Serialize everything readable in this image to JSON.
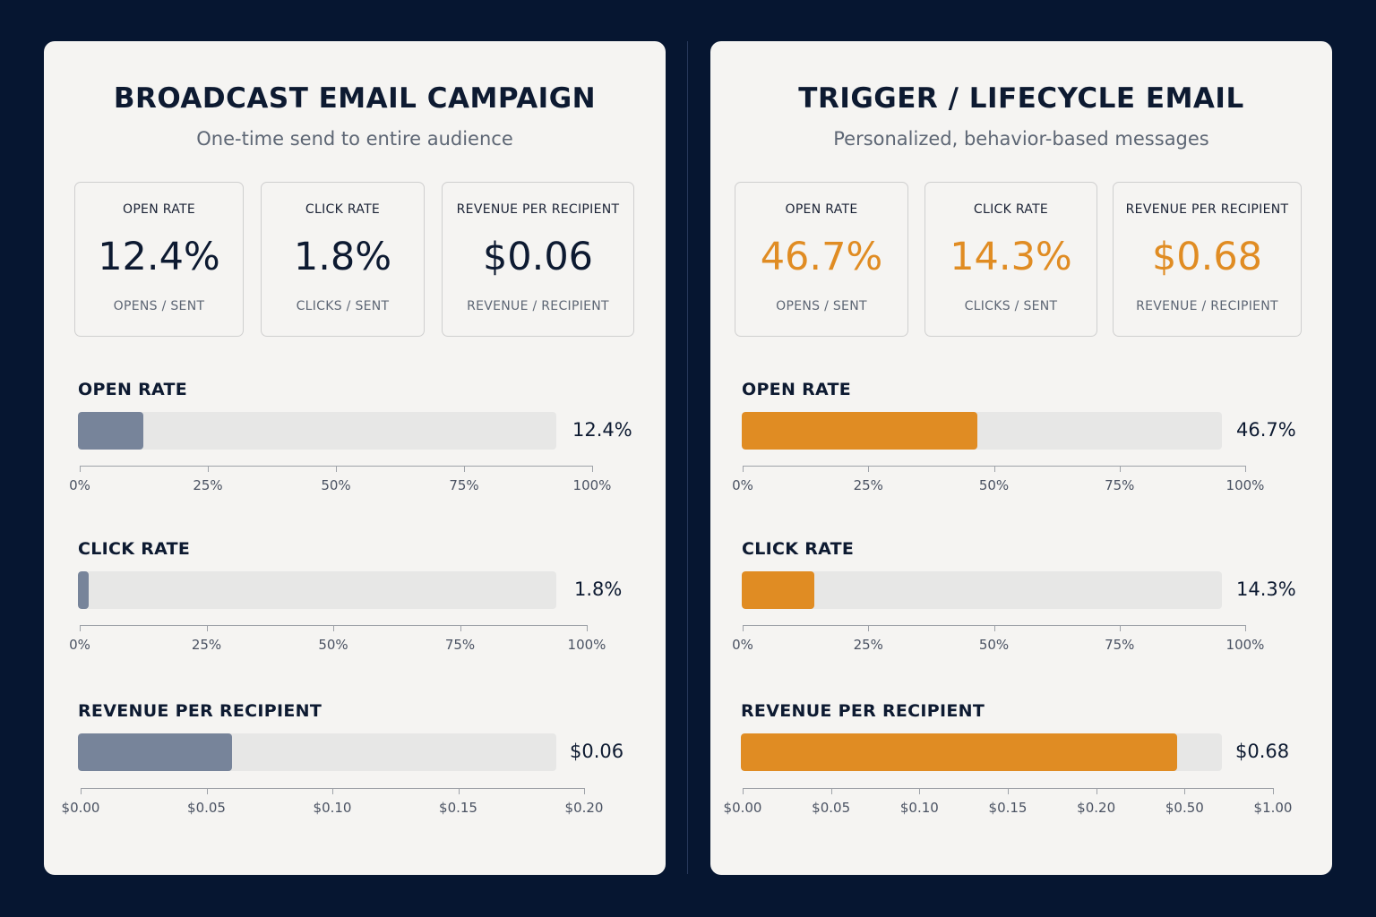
{
  "colors": {
    "background": "#061631",
    "panel": "#f5f4f2",
    "neutral_fill": "#77849a",
    "accent": "#e08c23",
    "dark_text": "#0d1a31"
  },
  "panels": [
    {
      "title": "BROADCAST EMAIL CAMPAIGN",
      "subtitle": "One-time send to entire audience",
      "cards": [
        {
          "label": "OPEN RATE",
          "value": "12.4%",
          "sub": "OPENS / SENT"
        },
        {
          "label": "CLICK RATE",
          "value": "1.8%",
          "sub": "CLICKS / SENT"
        },
        {
          "label": "REVENUE PER RECIPIENT",
          "value": "$0.06",
          "sub": "REVENUE / RECIPIENT"
        }
      ]
    },
    {
      "title": "TRIGGER / LIFECYCLE EMAIL",
      "subtitle": "Personalized, behavior-based messages",
      "cards": [
        {
          "label": "OPEN RATE",
          "value": "46.7%",
          "sub": "OPENS / SENT"
        },
        {
          "label": "CLICK RATE",
          "value": "14.3%",
          "sub": "CLICKS / SENT"
        },
        {
          "label": "REVENUE PER RECIPIENT",
          "value": "$0.68",
          "sub": "REVENUE / RECIPIENT"
        }
      ]
    }
  ],
  "chart_data": [
    {
      "type": "bar",
      "orientation": "horizontal",
      "title": "OPEN RATE",
      "value": 12.4,
      "value_label": "12.4%",
      "unit": "%",
      "xlim": [
        0,
        100
      ],
      "ticks": [
        0,
        25,
        50,
        75,
        100
      ],
      "tick_labels": [
        "0%",
        "25%",
        "50%",
        "75%",
        "100%"
      ],
      "color": "#77849a"
    },
    {
      "type": "bar",
      "orientation": "horizontal",
      "title": "CLICK RATE",
      "value": 1.8,
      "value_label": "1.8%",
      "unit": "%",
      "xlim": [
        0,
        100
      ],
      "ticks": [
        0,
        25,
        50,
        75,
        100
      ],
      "tick_labels": [
        "0%",
        "25%",
        "50%",
        "75%",
        "100%"
      ],
      "color": "#77849a"
    },
    {
      "type": "bar",
      "orientation": "horizontal",
      "title": "REVENUE PER RECIPIENT",
      "value": 0.06,
      "value_label": "$0.06",
      "unit": "$",
      "xlim": [
        0,
        0.2
      ],
      "ticks": [
        0,
        0.05,
        0.1,
        0.15,
        0.2
      ],
      "tick_labels": [
        "$0.00",
        "$0.05",
        "$0.10",
        "$0.15",
        "$0.20"
      ],
      "color": "#77849a"
    },
    {
      "type": "bar",
      "orientation": "horizontal",
      "title": "OPEN RATE",
      "value": 46.7,
      "value_label": "46.7%",
      "unit": "%",
      "xlim": [
        0,
        100
      ],
      "ticks": [
        0,
        25,
        50,
        75,
        100
      ],
      "tick_labels": [
        "0%",
        "25%",
        "50%",
        "75%",
        "100%"
      ],
      "color": "#e08c23"
    },
    {
      "type": "bar",
      "orientation": "horizontal",
      "title": "CLICK RATE",
      "value": 14.3,
      "value_label": "14.3%",
      "unit": "%",
      "xlim": [
        0,
        100
      ],
      "ticks": [
        0,
        25,
        50,
        75,
        100
      ],
      "tick_labels": [
        "0%",
        "25%",
        "50%",
        "75%",
        "100%"
      ],
      "color": "#e08c23"
    },
    {
      "type": "bar",
      "orientation": "horizontal",
      "title": "REVENUE PER RECIPIENT",
      "value": 0.68,
      "value_label": "$0.68",
      "unit": "$",
      "xlim": [
        0,
        1
      ],
      "ticks": [
        0,
        0.05,
        0.1,
        0.15,
        0.2,
        0.5,
        1
      ],
      "tick_labels": [
        "$0.00",
        "$0.05",
        "$0.10",
        "$0.15",
        "$0.20",
        "$0.50",
        "$1.00"
      ],
      "color": "#e08c23"
    }
  ]
}
